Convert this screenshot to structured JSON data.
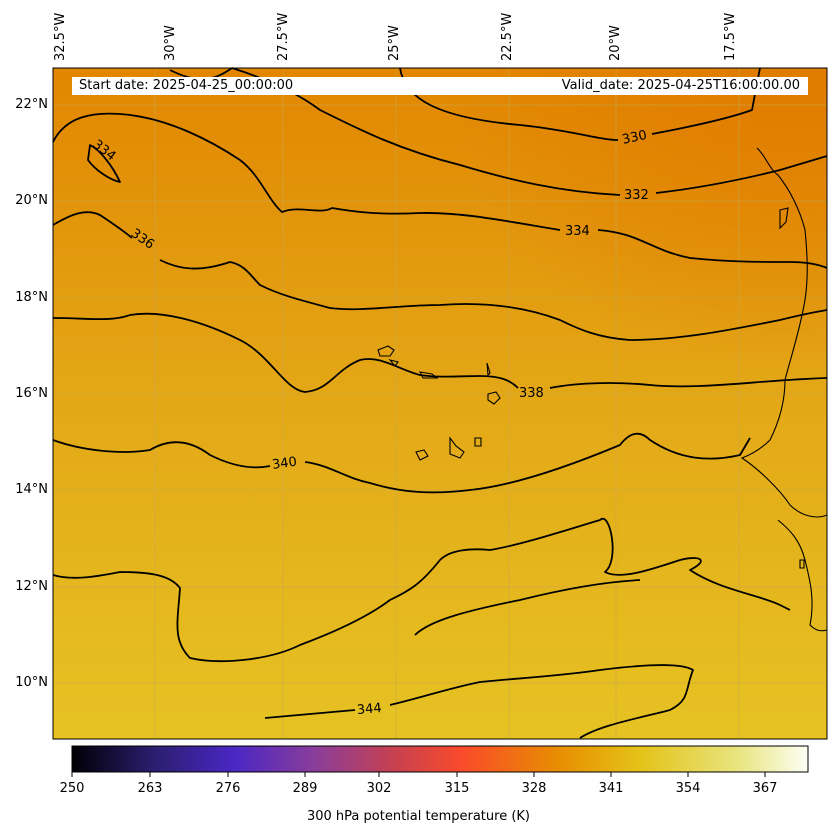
{
  "header": {
    "start_label": "Start date: 2025-04-25_00:00:00",
    "valid_label": "Valid_date: 2025-04-25T16:00:00.00"
  },
  "map": {
    "lon_ticks": [
      "32.5°W",
      "30°W",
      "27.5°W",
      "25°W",
      "22.5°W",
      "20°W",
      "17.5°W"
    ],
    "lat_ticks": [
      "22°N",
      "20°N",
      "18°N",
      "16°N",
      "14°N",
      "12°N",
      "10°N"
    ],
    "contour_labels": [
      "330",
      "332",
      "334",
      "334",
      "336",
      "338",
      "340",
      "344"
    ],
    "colors": {
      "north_fill": "#e28600",
      "mid_fill": "#e3a515",
      "south_fill": "#e6c323",
      "contour": "#000000"
    }
  },
  "colorbar": {
    "ticks": [
      "250",
      "263",
      "276",
      "289",
      "302",
      "315",
      "328",
      "341",
      "354",
      "367"
    ],
    "label": "300 hPa potential temperature (K)",
    "colors": [
      "#000004",
      "#2a1e6e",
      "#4a27c4",
      "#8a3d9a",
      "#c8414f",
      "#fa4b2b",
      "#e88d00",
      "#e4c218",
      "#e8e37a",
      "#fcfff4"
    ]
  }
}
